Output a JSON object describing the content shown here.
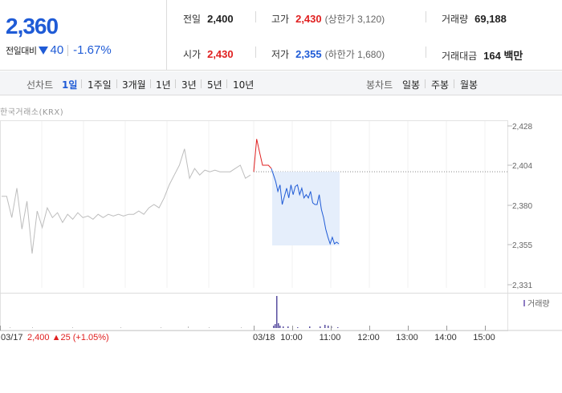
{
  "summary": {
    "current_price": "2,360",
    "change_label": "전일대비",
    "change_value": "40",
    "change_rate": "-1.67%",
    "stats": {
      "prev_close": {
        "label": "전일",
        "value": "2,400"
      },
      "high": {
        "label": "고가",
        "value": "2,430",
        "sub": "(상한가 3,120)"
      },
      "volume": {
        "label": "거래량",
        "value": "69,188"
      },
      "open": {
        "label": "시가",
        "value": "2,430"
      },
      "low": {
        "label": "저가",
        "value": "2,355",
        "sub": "(하한가 1,680)"
      },
      "trade_value": {
        "label": "거래대금",
        "value": "164 백만"
      }
    }
  },
  "toolbar": {
    "line_label": "선차트",
    "line_periods": [
      "1일",
      "1주일",
      "3개월",
      "1년",
      "3년",
      "5년",
      "10년"
    ],
    "active_period": "1일",
    "candle_label": "봉차트",
    "candle_periods": [
      "일봉",
      "주봉",
      "월봉"
    ]
  },
  "chart_data": {
    "type": "line",
    "source": "한국거래소(KRX)",
    "yticks": [
      "2,428",
      "2,404",
      "2,380",
      "2,355",
      "2,331"
    ],
    "ylim": [
      2331,
      2428
    ],
    "prev_close_ref": 2400,
    "volume_legend": "거래량",
    "time_labels": [
      "03/17",
      "03/18",
      "10:00",
      "11:00",
      "12:00",
      "13:00",
      "14:00",
      "15:00"
    ],
    "prev_day_note": "2,400 ▲25 (+1.05%)",
    "prev_day_series": [
      2385,
      2385,
      2372,
      2390,
      2365,
      2382,
      2350,
      2376,
      2366,
      2378,
      2372,
      2375,
      2369,
      2374,
      2371,
      2375,
      2372,
      2373,
      2371,
      2374,
      2372,
      2374,
      2373,
      2374,
      2373,
      2374,
      2374,
      2376,
      2374,
      2378,
      2380,
      2378,
      2384,
      2392,
      2398,
      2404,
      2414,
      2396,
      2402,
      2398,
      2401,
      2400,
      2401,
      2400,
      2400,
      2400,
      2402,
      2404,
      2396,
      2398
    ],
    "today_up_series": [
      2400,
      2420,
      2412,
      2404,
      2404,
      2404,
      2402
    ],
    "today_down_series": [
      2402,
      2398,
      2394,
      2388,
      2392,
      2380,
      2385,
      2390,
      2384,
      2392,
      2386,
      2391,
      2392,
      2386,
      2390,
      2384,
      2386,
      2384,
      2388,
      2381,
      2380,
      2380,
      2386,
      2377,
      2372,
      2365,
      2360,
      2356,
      2360,
      2356,
      2357,
      2356
    ]
  }
}
